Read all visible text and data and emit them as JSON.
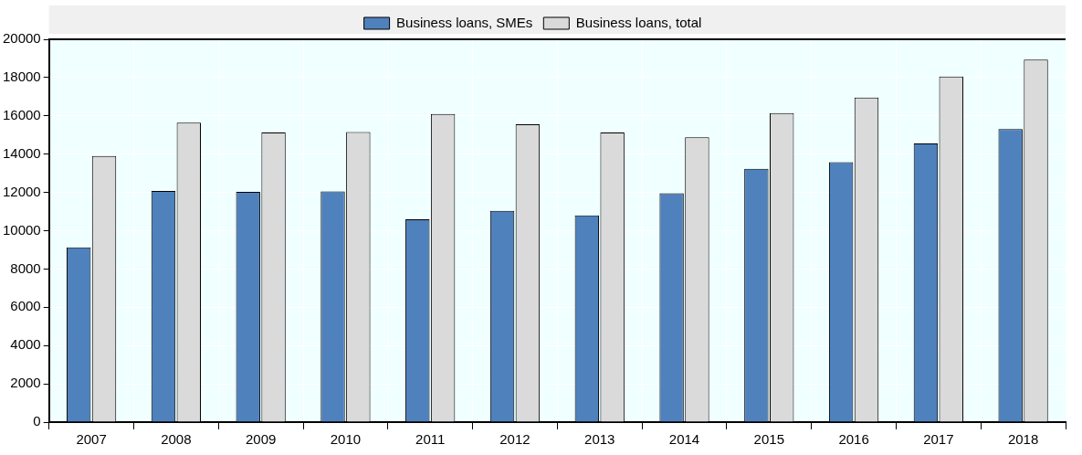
{
  "chart_data": {
    "type": "bar",
    "categories": [
      "2007",
      "2008",
      "2009",
      "2010",
      "2011",
      "2012",
      "2013",
      "2014",
      "2015",
      "2016",
      "2017",
      "2018"
    ],
    "series": [
      {
        "name": "Business loans, SMEs",
        "color": "#4f81bd",
        "values": [
          9130,
          12080,
          12030,
          12050,
          10600,
          11040,
          10800,
          11960,
          13230,
          13580,
          14560,
          15310
        ]
      },
      {
        "name": "Business loans, total",
        "color": "#dadada",
        "values": [
          13900,
          15650,
          15130,
          15150,
          16100,
          15560,
          15130,
          14880,
          16150,
          16960,
          18060,
          18940
        ]
      }
    ],
    "ylim": [
      0,
      20000
    ],
    "yticks": [
      0,
      2000,
      4000,
      6000,
      8000,
      10000,
      12000,
      14000,
      16000,
      18000,
      20000
    ],
    "grid": true,
    "legend": "top"
  }
}
